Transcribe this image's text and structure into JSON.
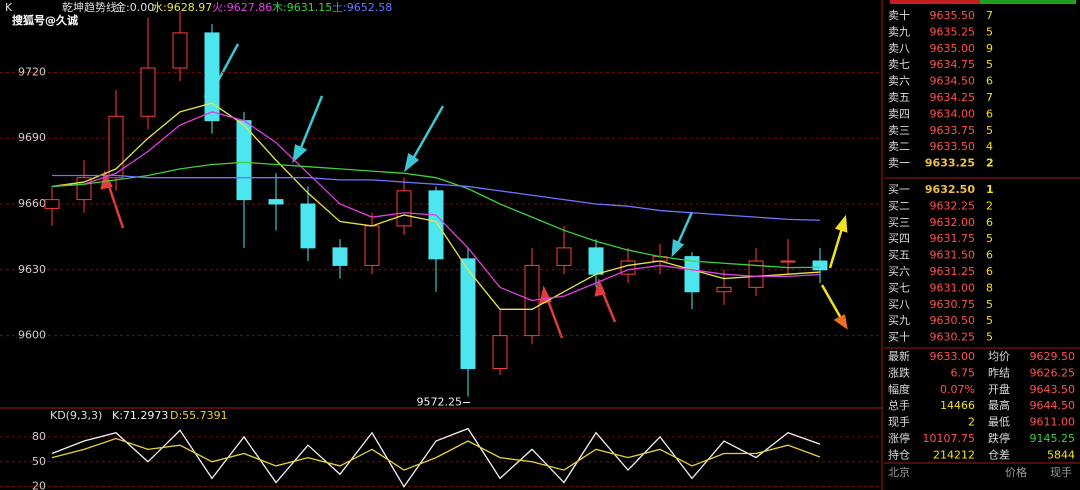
{
  "watermark": "搜狐号@久诚",
  "chart_data": [
    {
      "type": "candlestick",
      "title": "K",
      "subtitle": "乾坤趋势线",
      "note": "金:0.00",
      "open": [
        9658,
        9662,
        9672,
        9700,
        9722,
        9738,
        9698,
        9662,
        9660,
        9640,
        9632,
        9650,
        9666,
        9635,
        9585,
        9600,
        9632,
        9640,
        9628,
        9634,
        9636,
        9620,
        9622,
        9634,
        9634
      ],
      "high": [
        9668,
        9680,
        9712,
        9745,
        9748,
        9742,
        9702,
        9674,
        9668,
        9644,
        9656,
        9672,
        9668,
        9640,
        9612,
        9640,
        9650,
        9644,
        9640,
        9642,
        9638,
        9630,
        9640,
        9644,
        9640
      ],
      "low": [
        9650,
        9656,
        9666,
        9694,
        9716,
        9692,
        9640,
        9648,
        9634,
        9626,
        9628,
        9646,
        9620,
        9572.25,
        9582,
        9596,
        9628,
        9622,
        9624,
        9628,
        9612,
        9614,
        9618,
        9628,
        9624
      ],
      "close": [
        9662,
        9672,
        9700,
        9722,
        9738,
        9698,
        9662,
        9660,
        9640,
        9632,
        9650,
        9666,
        9635,
        9585,
        9600,
        9632,
        9640,
        9628,
        9634,
        9636,
        9620,
        9622,
        9634,
        9634,
        9630
      ],
      "up_color": "#ff3c3c",
      "down_color": "#4ee6ee",
      "series": [
        {
          "name": "水:9628.97",
          "color": "#e6e64a",
          "values": [
            9668,
            9670,
            9676,
            9690,
            9702,
            9706,
            9696,
            9680,
            9665,
            9652,
            9650,
            9655,
            9652,
            9630,
            9612,
            9612,
            9620,
            9628,
            9632,
            9634,
            9630,
            9626,
            9627,
            9628,
            9628.97
          ]
        },
        {
          "name": "火:9627.86",
          "color": "#e040e0",
          "values": [
            9668,
            9669,
            9674,
            9684,
            9696,
            9702,
            9698,
            9688,
            9674,
            9660,
            9654,
            9656,
            9655,
            9640,
            9622,
            9616,
            9618,
            9624,
            9630,
            9632,
            9630,
            9628,
            9627,
            9627,
            9627.86
          ]
        },
        {
          "name": "木:9631.15",
          "color": "#3cd23c",
          "values": [
            9668,
            9669,
            9671,
            9673,
            9676,
            9678,
            9679,
            9678,
            9677,
            9676,
            9675,
            9674,
            9672,
            9667,
            9660,
            9654,
            9648,
            9643,
            9639,
            9636,
            9634,
            9633,
            9632,
            9631,
            9631.15
          ]
        },
        {
          "name": "土:9652.58",
          "color": "#7272ff",
          "values": [
            9673,
            9673,
            9673,
            9672,
            9672,
            9672,
            9672,
            9672,
            9672,
            9671,
            9671,
            9670,
            9669,
            9668,
            9666,
            9664,
            9662,
            9660,
            9659,
            9657,
            9656,
            9655,
            9654,
            9653,
            9652.58
          ]
        }
      ],
      "ylim": [
        9567,
        9753
      ],
      "yticks": [
        9600,
        9630,
        9660,
        9690,
        9720
      ],
      "grid": true
    },
    {
      "type": "line",
      "title": "KD(9,3,3)",
      "series": [
        {
          "name": "K:71.2973",
          "color": "#f2f2f2",
          "values": [
            60,
            75,
            85,
            50,
            88,
            30,
            80,
            25,
            70,
            35,
            85,
            20,
            75,
            90,
            30,
            65,
            25,
            85,
            40,
            80,
            30,
            75,
            55,
            85,
            71.2973
          ]
        },
        {
          "name": "D:55.7391",
          "color": "#e6d23c",
          "values": [
            55,
            65,
            78,
            65,
            70,
            50,
            60,
            45,
            55,
            45,
            65,
            40,
            55,
            75,
            55,
            50,
            40,
            65,
            55,
            65,
            45,
            60,
            60,
            70,
            55.7391
          ]
        }
      ],
      "ylim": [
        16,
        110
      ],
      "yticks": [
        20,
        50,
        80
      ],
      "grid": true
    }
  ],
  "order_book": {
    "asks": [
      [
        "卖十",
        "9635.50",
        "7"
      ],
      [
        "卖九",
        "9635.25",
        "5"
      ],
      [
        "卖八",
        "9635.00",
        "9"
      ],
      [
        "卖七",
        "9634.75",
        "5"
      ],
      [
        "卖六",
        "9634.50",
        "6"
      ],
      [
        "卖五",
        "9634.25",
        "7"
      ],
      [
        "卖四",
        "9634.00",
        "6"
      ],
      [
        "卖三",
        "9633.75",
        "5"
      ],
      [
        "卖二",
        "9633.50",
        "4"
      ],
      [
        "卖一",
        "9633.25",
        "2"
      ]
    ],
    "bids": [
      [
        "买一",
        "9632.50",
        "1"
      ],
      [
        "买二",
        "9632.25",
        "2"
      ],
      [
        "买三",
        "9632.00",
        "6"
      ],
      [
        "买四",
        "9631.75",
        "5"
      ],
      [
        "买五",
        "9631.50",
        "6"
      ],
      [
        "买六",
        "9631.25",
        "6"
      ],
      [
        "买七",
        "9631.00",
        "8"
      ],
      [
        "买八",
        "9630.75",
        "5"
      ],
      [
        "买九",
        "9630.50",
        "5"
      ],
      [
        "买十",
        "9630.25",
        "5"
      ]
    ]
  },
  "stats": [
    [
      "最新",
      "9633.00",
      "均价",
      "9629.50"
    ],
    [
      "涨跌",
      "6.75",
      "昨结",
      "9626.25"
    ],
    [
      "幅度",
      "0.07%",
      "开盘",
      "9643.50"
    ],
    [
      "总手",
      "14466",
      "最高",
      "9644.50"
    ],
    [
      "现手",
      "2",
      "最低",
      "9611.00"
    ],
    [
      "涨停",
      "10107.75",
      "跌停",
      "9145.25"
    ],
    [
      "持仓",
      "214212",
      "仓差",
      "5844"
    ]
  ],
  "footer": [
    "北京",
    "价格",
    "现手"
  ]
}
